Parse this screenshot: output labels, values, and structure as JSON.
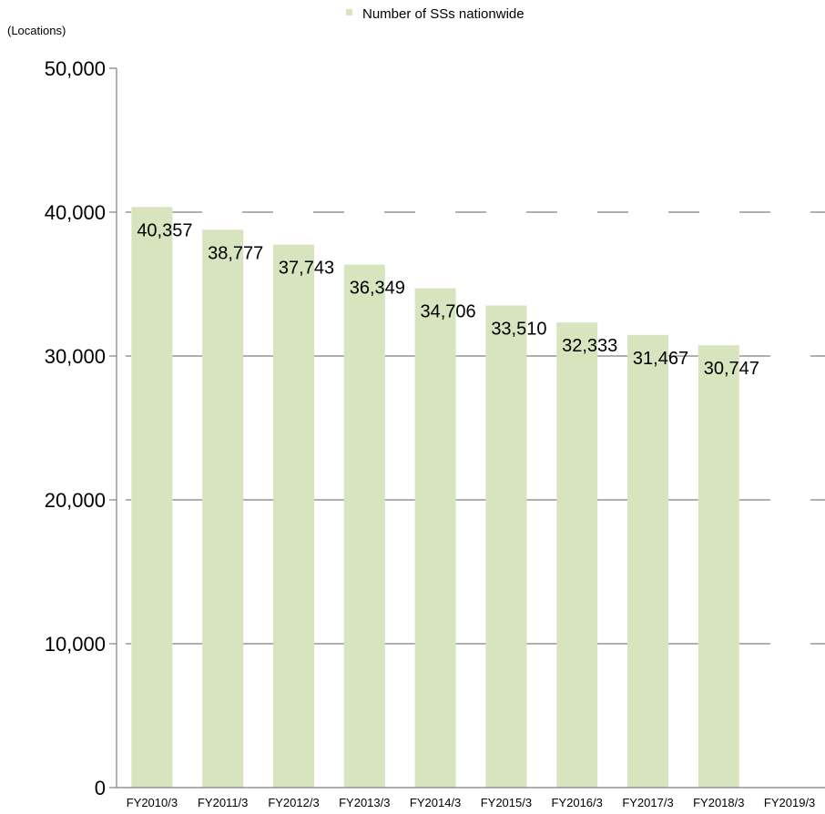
{
  "chart_data": {
    "type": "bar",
    "unit_label": "(Locations)",
    "categories": [
      "FY2010/3",
      "FY2011/3",
      "FY2012/3",
      "FY2013/3",
      "FY2014/3",
      "FY2015/3",
      "FY2016/3",
      "FY2017/3",
      "FY2018/3",
      "FY2019/3"
    ],
    "series": [
      {
        "name": "Number of SSs nationwide",
        "color": "#d7e4bd",
        "values": [
          40357,
          38777,
          37743,
          36349,
          34706,
          33510,
          32333,
          31467,
          30747,
          null
        ],
        "labels": [
          "40,357",
          "38,777",
          "37,743",
          "36,349",
          "34,706",
          "33,510",
          "32,333",
          "31,467",
          "30,747",
          ""
        ]
      }
    ],
    "ylim": [
      0,
      50000
    ],
    "yticks": [
      0,
      10000,
      20000,
      30000,
      40000,
      50000
    ],
    "ytick_labels": [
      "0",
      "10,000",
      "20,000",
      "30,000",
      "40,000",
      "50,000"
    ],
    "grid": true,
    "legend_position": "top"
  }
}
